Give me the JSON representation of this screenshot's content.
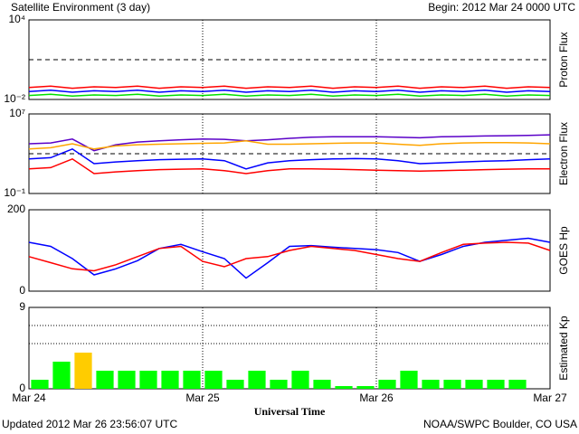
{
  "header": {
    "title": "Satellite Environment (3 day)",
    "begin": "Begin:  2012 Mar 24 0000 UTC",
    "xlabel": "Universal Time",
    "updated": "Updated 2012 Mar 26 23:56:07 UTC",
    "credit": "NOAA/SWPC Boulder, CO USA"
  },
  "chart_data": [
    {
      "type": "line",
      "ylabel": "Proton Flux",
      "log": true,
      "ylim": [
        0.01,
        10000
      ],
      "yticks": [
        {
          "value": 10000,
          "label": "10⁴"
        },
        {
          "value": 0.01,
          "label": "10⁻²"
        }
      ],
      "hlines": [
        10
      ],
      "x": [
        0,
        3,
        6,
        9,
        12,
        15,
        18,
        21,
        24,
        27,
        30,
        33,
        36,
        39,
        42,
        45,
        48,
        51,
        54,
        57,
        60,
        63,
        66,
        69,
        72
      ],
      "series": [
        {
          "color": "#ff0000",
          "values": [
            0.08,
            0.1,
            0.07,
            0.09,
            0.08,
            0.1,
            0.07,
            0.09,
            0.08,
            0.1,
            0.07,
            0.09,
            0.08,
            0.1,
            0.07,
            0.09,
            0.08,
            0.1,
            0.07,
            0.09,
            0.08,
            0.1,
            0.07,
            0.09,
            0.08
          ]
        },
        {
          "color": "#0000ff",
          "values": [
            0.04,
            0.05,
            0.035,
            0.045,
            0.04,
            0.05,
            0.035,
            0.045,
            0.04,
            0.05,
            0.035,
            0.045,
            0.04,
            0.05,
            0.035,
            0.045,
            0.04,
            0.05,
            0.035,
            0.045,
            0.04,
            0.05,
            0.035,
            0.045,
            0.04
          ]
        },
        {
          "color": "#00e000",
          "values": [
            0.02,
            0.025,
            0.018,
            0.022,
            0.02,
            0.025,
            0.018,
            0.022,
            0.02,
            0.025,
            0.018,
            0.022,
            0.02,
            0.025,
            0.018,
            0.022,
            0.02,
            0.025,
            0.018,
            0.022,
            0.02,
            0.025,
            0.018,
            0.022,
            0.02
          ]
        }
      ]
    },
    {
      "type": "line",
      "ylabel": "Electron Flux",
      "log": true,
      "ylim": [
        0.1,
        10000000
      ],
      "yticks": [
        {
          "value": 10000000,
          "label": "10⁷"
        },
        {
          "value": 0.1,
          "label": "10⁻¹"
        }
      ],
      "hlines": [
        1000
      ],
      "x": [
        0,
        3,
        6,
        9,
        12,
        15,
        18,
        21,
        24,
        27,
        30,
        33,
        36,
        39,
        42,
        45,
        48,
        51,
        54,
        57,
        60,
        63,
        66,
        69,
        72
      ],
      "series": [
        {
          "color": "#5a00c8",
          "values": [
            10000,
            12000,
            30000,
            2000,
            8000,
            15000,
            20000,
            25000,
            30000,
            28000,
            20000,
            25000,
            35000,
            45000,
            50000,
            50000,
            50000,
            45000,
            40000,
            50000,
            55000,
            60000,
            65000,
            70000,
            80000
          ]
        },
        {
          "color": "#ffa500",
          "values": [
            3000,
            4000,
            10000,
            3000,
            6000,
            8000,
            9000,
            10000,
            11000,
            12000,
            20000,
            9000,
            9000,
            10000,
            11000,
            12000,
            12000,
            9000,
            7000,
            10000,
            12000,
            13000,
            13000,
            12000,
            10000
          ]
        },
        {
          "color": "#0000ff",
          "values": [
            300,
            400,
            3000,
            100,
            150,
            200,
            250,
            280,
            300,
            200,
            30,
            120,
            200,
            250,
            300,
            320,
            300,
            200,
            100,
            120,
            150,
            180,
            200,
            250,
            300
          ]
        },
        {
          "color": "#ff0000",
          "values": [
            30,
            40,
            300,
            10,
            15,
            20,
            25,
            28,
            30,
            20,
            10,
            20,
            30,
            30,
            28,
            25,
            22,
            20,
            18,
            20,
            22,
            25,
            28,
            30,
            30
          ]
        }
      ]
    },
    {
      "type": "line",
      "ylabel": "GOES Hp",
      "log": false,
      "ylim": [
        0,
        200
      ],
      "yticks": [
        200,
        0
      ],
      "hlines": [],
      "x": [
        0,
        3,
        6,
        9,
        12,
        15,
        18,
        21,
        24,
        27,
        30,
        33,
        36,
        39,
        42,
        45,
        48,
        51,
        54,
        57,
        60,
        63,
        66,
        69,
        72
      ],
      "series": [
        {
          "color": "#0000ff",
          "values": [
            120,
            110,
            80,
            40,
            55,
            75,
            105,
            115,
            97,
            80,
            32,
            70,
            110,
            112,
            108,
            105,
            102,
            95,
            73,
            90,
            110,
            120,
            125,
            130,
            120
          ]
        },
        {
          "color": "#ff0000",
          "values": [
            85,
            70,
            55,
            50,
            65,
            85,
            105,
            110,
            73,
            60,
            80,
            85,
            100,
            110,
            105,
            100,
            90,
            80,
            73,
            95,
            115,
            118,
            120,
            118,
            100
          ]
        }
      ]
    },
    {
      "type": "bar",
      "ylabel": "Estimated Kp",
      "log": false,
      "ylim": [
        0,
        9
      ],
      "yticks": [
        9,
        0
      ],
      "hlines": [
        5,
        7,
        9
      ],
      "xlim": [
        0,
        72
      ],
      "xticks": [
        {
          "value": 0,
          "label": "Mar 24"
        },
        {
          "value": 24,
          "label": "Mar 25"
        },
        {
          "value": 48,
          "label": "Mar 26"
        },
        {
          "value": 72,
          "label": "Mar 27"
        }
      ],
      "x": [
        1.5,
        4.5,
        7.5,
        10.5,
        13.5,
        16.5,
        19.5,
        22.5,
        25.5,
        28.5,
        31.5,
        34.5,
        37.5,
        40.5,
        43.5,
        46.5,
        49.5,
        52.5,
        55.5,
        58.5,
        61.5,
        64.5,
        67.5,
        70.5
      ],
      "values": [
        1,
        3,
        4,
        2,
        2,
        2,
        2,
        2,
        2,
        1,
        2,
        1,
        2,
        1,
        0.3,
        0.3,
        1,
        2,
        1,
        1,
        1,
        1,
        1,
        null
      ],
      "colors": [
        "#00ff00",
        "#00ff00",
        "#ffcc00",
        "#00ff00",
        "#00ff00",
        "#00ff00",
        "#00ff00",
        "#00ff00",
        "#00ff00",
        "#00ff00",
        "#00ff00",
        "#00ff00",
        "#00ff00",
        "#00ff00",
        "#00ff00",
        "#00ff00",
        "#00ff00",
        "#00ff00",
        "#00ff00",
        "#00ff00",
        "#00ff00",
        "#00ff00",
        "#00ff00",
        "#00ff00"
      ]
    }
  ]
}
